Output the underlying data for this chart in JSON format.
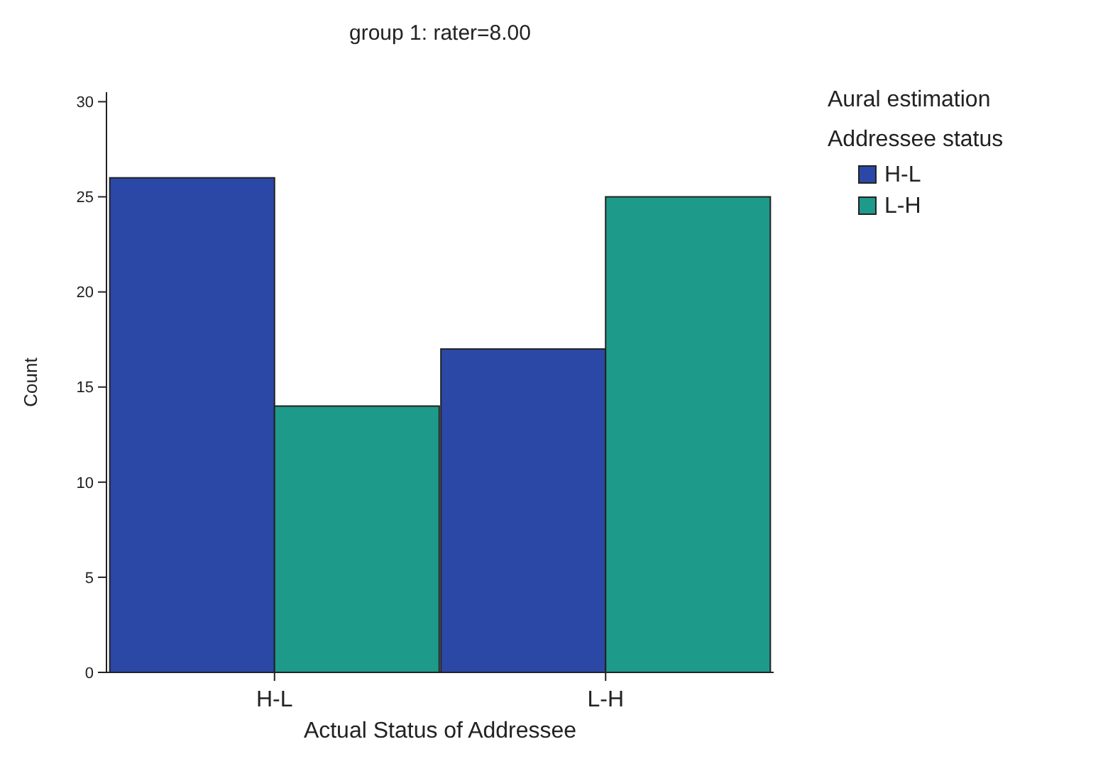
{
  "chart_data": {
    "type": "bar",
    "title": "group 1: rater=8.00",
    "xlabel": "Actual Status of Addressee",
    "ylabel": "Count",
    "legend_title": "Aural estimation\nAddressee status",
    "categories": [
      "H-L",
      "L-H"
    ],
    "series": [
      {
        "name": "H-L",
        "color": "#2b48a6",
        "values": [
          26,
          17
        ]
      },
      {
        "name": "L-H",
        "color": "#1e9a8a",
        "values": [
          14,
          25
        ]
      }
    ],
    "ylim": [
      0,
      30.5
    ],
    "yticks": [
      0,
      5,
      10,
      15,
      20,
      25,
      30
    ],
    "grid": false,
    "legend": "right"
  }
}
